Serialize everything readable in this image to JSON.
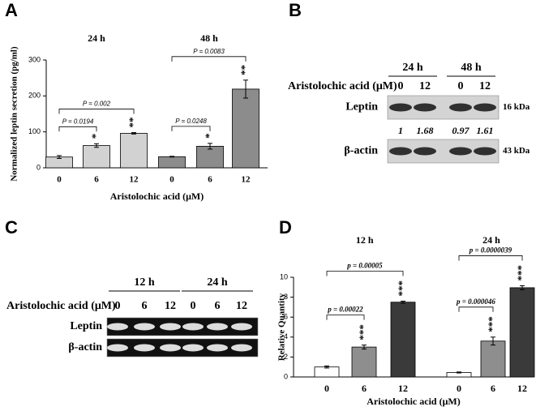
{
  "panel_labels": [
    "A",
    "B",
    "C",
    "D"
  ],
  "chart_data": [
    {
      "type": "bar",
      "ylabel": "Normalized leptin secretion (pg/ml)",
      "xlabel": "Aristolochic acid (μM)",
      "categories": [
        "0",
        "6",
        "12"
      ],
      "ylim": [
        0,
        300
      ],
      "yticks": [
        0,
        100,
        200,
        300
      ],
      "series": [
        {
          "name": "24 h",
          "colors": [
            "#d2d2d2",
            "#d2d2d2",
            "#d2d2d2"
          ],
          "values": [
            30,
            62,
            96
          ],
          "errors": [
            4,
            5,
            2
          ],
          "stars": [
            null,
            "*",
            "**"
          ],
          "brackets": [
            {
              "from": 0,
              "to": 1,
              "label": "P = 0.0194"
            },
            {
              "from": 0,
              "to": 2,
              "label": "P = 0.002"
            }
          ]
        },
        {
          "name": "48 h",
          "colors": [
            "#8c8c8c",
            "#8c8c8c",
            "#8c8c8c"
          ],
          "values": [
            31,
            60,
            219
          ],
          "errors": [
            1,
            8,
            25
          ],
          "stars": [
            null,
            "*",
            "**"
          ],
          "brackets": [
            {
              "from": 0,
              "to": 1,
              "label": "P = 0.0248"
            },
            {
              "from": 0,
              "to": 2,
              "label": "P = 0.0083"
            }
          ]
        }
      ]
    },
    {
      "type": "bar",
      "ylabel": "Relative Quantity",
      "xlabel": "Aristolochic acid (μM)",
      "categories": [
        "0",
        "6",
        "12"
      ],
      "ylim": [
        0,
        10
      ],
      "yticks": [
        0,
        2,
        4,
        6,
        8,
        10
      ],
      "series": [
        {
          "name": "12 h",
          "colors": [
            "#ffffff",
            "#8e8e8e",
            "#3a3a3a"
          ],
          "values": [
            1.0,
            3.0,
            7.5
          ],
          "errors": [
            0.1,
            0.2,
            0.1
          ],
          "stars": [
            null,
            "***",
            "***"
          ],
          "brackets": [
            {
              "from": 0,
              "to": 1,
              "label": "p = 0.00022"
            },
            {
              "from": 0,
              "to": 2,
              "label": "p = 0.00005"
            }
          ]
        },
        {
          "name": "24 h",
          "colors": [
            "#ffffff",
            "#8e8e8e",
            "#3a3a3a"
          ],
          "values": [
            0.45,
            3.6,
            8.95
          ],
          "errors": [
            0.05,
            0.4,
            0.2
          ],
          "stars": [
            null,
            "***",
            "***"
          ],
          "brackets": [
            {
              "from": 0,
              "to": 1,
              "label": "p = 0.000046"
            },
            {
              "from": 0,
              "to": 2,
              "label": "p = 0.0000039"
            }
          ]
        }
      ]
    }
  ],
  "blots": [
    {
      "groups": [
        "24 h",
        "48 h"
      ],
      "treatment_label": "Aristolochic acid (μM)",
      "doses": [
        "0",
        "12",
        "0",
        "12"
      ],
      "rows": [
        {
          "label": "Leptin",
          "size": "16 kDa",
          "quantities": [
            1,
            1.68,
            0.97,
            1.61
          ]
        },
        {
          "label": "β-actin",
          "size": "43 kDa"
        }
      ]
    },
    {
      "groups": [
        "12 h",
        "24 h"
      ],
      "treatment_label": "Aristolochic acid (μM)",
      "doses": [
        "0",
        "6",
        "12",
        "0",
        "6",
        "12"
      ],
      "rows": [
        {
          "label": "Leptin"
        },
        {
          "label": "β-actin"
        }
      ]
    }
  ]
}
